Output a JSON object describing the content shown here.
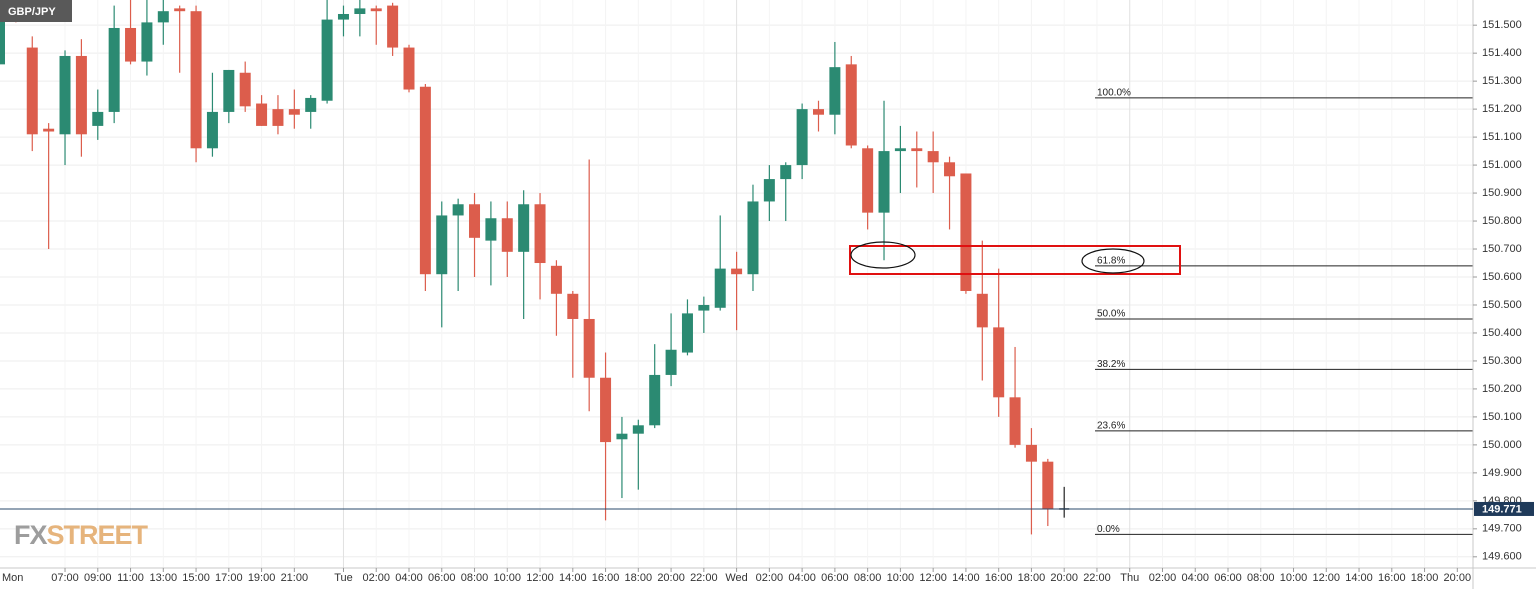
{
  "chart_data": {
    "type": "candlestick",
    "title": "GBP/JPY",
    "watermark": [
      "FX",
      "STREET"
    ],
    "categories": [
      "Mon",
      null,
      null,
      null,
      "07:00",
      null,
      "09:00",
      null,
      "11:00",
      null,
      "13:00",
      null,
      "15:00",
      null,
      "17:00",
      null,
      "19:00",
      null,
      "21:00",
      null,
      null,
      "Tue",
      null,
      "02:00",
      null,
      "04:00",
      null,
      "06:00",
      null,
      "08:00",
      null,
      "10:00",
      null,
      "12:00",
      null,
      "14:00",
      null,
      "16:00",
      null,
      "18:00",
      null,
      "20:00",
      null,
      "22:00",
      null,
      "Wed",
      null,
      "02:00",
      null,
      "04:00",
      null,
      "06:00",
      null,
      "08:00",
      null,
      "10:00",
      null,
      "12:00",
      null,
      "14:00",
      null,
      "16:00",
      null,
      "18:00",
      null,
      "20:00",
      null,
      "22:00",
      null,
      "Thu",
      null,
      "02:00",
      null,
      "04:00",
      null,
      "06:00",
      null,
      "08:00",
      null,
      "10:00",
      null,
      "12:00",
      null,
      "14:00",
      null,
      "16:00",
      null,
      "18:00",
      null,
      "20:00"
    ],
    "open": [
      151.36,
      151.58,
      151.42,
      151.13,
      151.11,
      151.39,
      151.14,
      151.19,
      151.49,
      151.37,
      151.51,
      151.56,
      151.55,
      151.06,
      151.19,
      151.33,
      151.22,
      151.2,
      151.2,
      151.19,
      151.23,
      151.52,
      151.54,
      151.56,
      151.57,
      151.42,
      151.28,
      150.61,
      150.82,
      150.86,
      150.73,
      150.81,
      150.69,
      150.86,
      150.64,
      150.54,
      150.45,
      150.24,
      150.02,
      150.04,
      150.07,
      150.25,
      150.33,
      150.48,
      150.49,
      150.63,
      150.61,
      150.87,
      150.95,
      151.0,
      151.2,
      151.18,
      151.36,
      151.06,
      150.83,
      151.05,
      151.06,
      151.05,
      151.01,
      150.97,
      150.54,
      150.42,
      150.17,
      150.0,
      149.94,
      149.771,
      null,
      null,
      null,
      null,
      null,
      null,
      null,
      null,
      null,
      null,
      null,
      null,
      null,
      null,
      null,
      null,
      null,
      null,
      null,
      null,
      null,
      null,
      null,
      null
    ],
    "high": [
      151.59,
      151.59,
      151.46,
      151.15,
      151.41,
      151.45,
      151.27,
      151.57,
      151.59,
      151.59,
      151.59,
      151.57,
      151.57,
      151.33,
      151.34,
      151.37,
      151.25,
      151.25,
      151.27,
      151.25,
      151.59,
      151.57,
      151.59,
      151.57,
      151.58,
      151.43,
      151.29,
      150.87,
      150.88,
      150.9,
      150.87,
      150.87,
      150.91,
      150.9,
      150.66,
      150.55,
      151.02,
      150.33,
      150.1,
      150.09,
      150.36,
      150.47,
      150.52,
      150.53,
      150.82,
      150.69,
      150.93,
      151.0,
      151.01,
      151.22,
      151.23,
      151.44,
      151.39,
      151.07,
      151.23,
      151.14,
      151.12,
      151.12,
      151.03,
      150.97,
      150.73,
      150.63,
      150.35,
      150.06,
      149.95,
      149.85,
      null,
      null,
      null,
      null,
      null,
      null,
      null,
      null,
      null,
      null,
      null,
      null,
      null,
      null,
      null,
      null,
      null,
      null,
      null,
      null,
      null,
      null,
      null,
      null
    ],
    "low": [
      151.36,
      151.51,
      151.05,
      150.7,
      151.0,
      151.03,
      151.09,
      151.15,
      151.36,
      151.32,
      151.43,
      151.33,
      151.01,
      151.03,
      151.15,
      151.19,
      151.14,
      151.11,
      151.13,
      151.13,
      151.22,
      151.46,
      151.46,
      151.43,
      151.39,
      151.26,
      150.55,
      150.42,
      150.55,
      150.6,
      150.57,
      150.6,
      150.45,
      150.52,
      150.39,
      150.24,
      150.12,
      149.73,
      149.81,
      149.84,
      150.06,
      150.21,
      150.32,
      150.4,
      150.48,
      150.41,
      150.55,
      150.8,
      150.8,
      150.95,
      151.12,
      151.11,
      151.06,
      150.77,
      150.66,
      150.9,
      150.92,
      150.9,
      150.77,
      150.54,
      150.23,
      150.1,
      149.99,
      149.68,
      149.71,
      149.74,
      null,
      null,
      null,
      null,
      null,
      null,
      null,
      null,
      null,
      null,
      null,
      null,
      null,
      null,
      null,
      null,
      null,
      null,
      null,
      null,
      null,
      null,
      null,
      null
    ],
    "close": [
      151.57,
      151.52,
      151.11,
      151.12,
      151.39,
      151.11,
      151.19,
      151.49,
      151.37,
      151.51,
      151.55,
      151.55,
      151.06,
      151.19,
      151.34,
      151.21,
      151.14,
      151.14,
      151.18,
      151.24,
      151.52,
      151.54,
      151.56,
      151.55,
      151.42,
      151.27,
      150.61,
      150.82,
      150.86,
      150.74,
      150.81,
      150.69,
      150.86,
      150.65,
      150.54,
      150.45,
      150.24,
      150.01,
      150.04,
      150.07,
      150.25,
      150.34,
      150.47,
      150.5,
      150.63,
      150.61,
      150.87,
      150.95,
      151.0,
      151.2,
      151.18,
      151.35,
      151.07,
      150.83,
      151.05,
      151.06,
      151.05,
      151.01,
      150.96,
      150.55,
      150.42,
      150.17,
      150.0,
      149.94,
      149.77,
      149.771,
      null,
      null,
      null,
      null,
      null,
      null,
      null,
      null,
      null,
      null,
      null,
      null,
      null,
      null,
      null,
      null,
      null,
      null,
      null,
      null,
      null,
      null,
      null,
      null
    ],
    "colors": {
      "up": "#2b8a72",
      "down": "#dc5d4c",
      "flat": "#222222"
    },
    "ylim": [
      149.56,
      151.59
    ],
    "yticks": [
      {
        "value": 149.6,
        "label": "149.600"
      },
      {
        "value": 149.7,
        "label": "149.700"
      },
      {
        "value": 149.8,
        "label": "149.800"
      },
      {
        "value": 149.9,
        "label": "149.900"
      },
      {
        "value": 150.0,
        "label": "150.000"
      },
      {
        "value": 150.1,
        "label": "150.100"
      },
      {
        "value": 150.2,
        "label": "150.200"
      },
      {
        "value": 150.3,
        "label": "150.300"
      },
      {
        "value": 150.4,
        "label": "150.400"
      },
      {
        "value": 150.5,
        "label": "150.500"
      },
      {
        "value": 150.6,
        "label": "150.600"
      },
      {
        "value": 150.7,
        "label": "150.700"
      },
      {
        "value": 150.8,
        "label": "150.800"
      },
      {
        "value": 150.9,
        "label": "150.900"
      },
      {
        "value": 151.0,
        "label": "151.000"
      },
      {
        "value": 151.1,
        "label": "151.100"
      },
      {
        "value": 151.2,
        "label": "151.200"
      },
      {
        "value": 151.3,
        "label": "151.300"
      },
      {
        "value": 151.4,
        "label": "151.400"
      },
      {
        "value": 151.5,
        "label": "151.500"
      }
    ],
    "grid": true,
    "last_price": {
      "value": 149.771,
      "label": "149.771"
    },
    "fib_levels": [
      {
        "label": "100.0%",
        "price": 151.24
      },
      {
        "label": "61.8%",
        "price": 150.64
      },
      {
        "label": "50.0%",
        "price": 150.45
      },
      {
        "label": "38.2%",
        "price": 150.27
      },
      {
        "label": "23.6%",
        "price": 150.05
      },
      {
        "label": "0.0%",
        "price": 149.68
      }
    ]
  }
}
